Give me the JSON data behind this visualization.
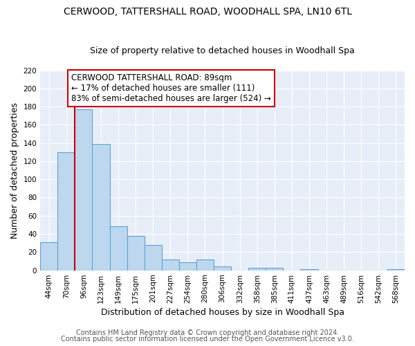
{
  "title": "CERWOOD, TATTERSHALL ROAD, WOODHALL SPA, LN10 6TL",
  "subtitle": "Size of property relative to detached houses in Woodhall Spa",
  "xlabel": "Distribution of detached houses by size in Woodhall Spa",
  "ylabel": "Number of detached properties",
  "footnote1": "Contains HM Land Registry data © Crown copyright and database right 2024.",
  "footnote2": "Contains public sector information licensed under the Open Government Licence v3.0.",
  "bar_labels": [
    "44sqm",
    "70sqm",
    "96sqm",
    "123sqm",
    "149sqm",
    "175sqm",
    "201sqm",
    "227sqm",
    "254sqm",
    "280sqm",
    "306sqm",
    "332sqm",
    "358sqm",
    "385sqm",
    "411sqm",
    "437sqm",
    "463sqm",
    "489sqm",
    "516sqm",
    "542sqm",
    "568sqm"
  ],
  "bar_values": [
    31,
    130,
    177,
    139,
    48,
    38,
    28,
    12,
    9,
    12,
    4,
    0,
    3,
    3,
    0,
    1,
    0,
    0,
    0,
    0,
    1
  ],
  "bar_color": "#BDD7EE",
  "bar_edge_color": "#5BA3D9",
  "ylim": [
    0,
    220
  ],
  "yticks": [
    0,
    20,
    40,
    60,
    80,
    100,
    120,
    140,
    160,
    180,
    200,
    220
  ],
  "vline_x": 1.5,
  "annotation_title": "CERWOOD TATTERSHALL ROAD: 89sqm",
  "annotation_line1": "← 17% of detached houses are smaller (111)",
  "annotation_line2": "83% of semi-detached houses are larger (524) →",
  "annotation_box_color": "#ffffff",
  "annotation_box_edge": "#cc0000",
  "vline_color": "#cc0000",
  "plot_bg_color": "#e8eef7",
  "fig_bg_color": "#ffffff",
  "grid_color": "#ffffff",
  "title_fontsize": 10,
  "subtitle_fontsize": 9,
  "axis_label_fontsize": 9,
  "tick_fontsize": 7.5,
  "annotation_fontsize": 8.5,
  "footnote_fontsize": 7
}
